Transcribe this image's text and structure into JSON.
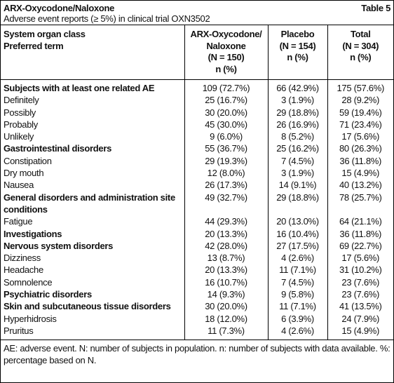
{
  "header": {
    "title": "ARX-Oxycodone/Naloxone",
    "table_label": "Table 5",
    "subtitle": "Adverse event reports (≥ 5%) in clinical trial OXN3502"
  },
  "table": {
    "columns": [
      [
        "System organ class",
        "Preferred term"
      ],
      [
        "ARX-Oxycodone/",
        "Naloxone",
        "(N = 150)",
        "n (%)"
      ],
      [
        "Placebo",
        "(N = 154)",
        "n (%)"
      ],
      [
        "Total",
        "(N = 304)",
        "n (%)"
      ]
    ],
    "rows": [
      {
        "cells": [
          "Subjects with at least one related AE",
          "109 (72.7%)",
          "66 (42.9%)",
          "175 (57.6%)"
        ],
        "bold": true
      },
      {
        "cells": [
          "Definitely",
          "25 (16.7%)",
          "3 (1.9%)",
          "28 (9.2%)"
        ],
        "bold": false
      },
      {
        "cells": [
          "Possibly",
          "30 (20.0%)",
          "29 (18.8%)",
          "59 (19.4%)"
        ],
        "bold": false
      },
      {
        "cells": [
          "Probably",
          "45 (30.0%)",
          "26 (16.9%)",
          "71 (23.4%)"
        ],
        "bold": false
      },
      {
        "cells": [
          "Unlikely",
          "9 (6.0%)",
          "8 (5.2%)",
          "17 (5.6%)"
        ],
        "bold": false
      },
      {
        "cells": [
          "Gastrointestinal disorders",
          "55 (36.7%)",
          "25 (16.2%)",
          "80 (26.3%)"
        ],
        "bold": true
      },
      {
        "cells": [
          "Constipation",
          "29 (19.3%)",
          "7 (4.5%)",
          "36 (11.8%)"
        ],
        "bold": false
      },
      {
        "cells": [
          "Dry mouth",
          "12 (8.0%)",
          "3 (1.9%)",
          "15 (4.9%)"
        ],
        "bold": false
      },
      {
        "cells": [
          "Nausea",
          "26 (17.3%)",
          "14 (9.1%)",
          "40 (13.2%)"
        ],
        "bold": false
      },
      {
        "cells": [
          "General disorders and administration site conditions",
          "49 (32.7%)",
          "29 (18.8%)",
          "78 (25.7%)"
        ],
        "bold": true
      },
      {
        "cells": [
          "Fatigue",
          "44 (29.3%)",
          "20 (13.0%)",
          "64 (21.1%)"
        ],
        "bold": false
      },
      {
        "cells": [
          "Investigations",
          "20 (13.3%)",
          "16 (10.4%)",
          "36 (11.8%)"
        ],
        "bold": true
      },
      {
        "cells": [
          "Nervous system disorders",
          "42 (28.0%)",
          "27 (17.5%)",
          "69 (22.7%)"
        ],
        "bold": true
      },
      {
        "cells": [
          "Dizziness",
          "13 (8.7%)",
          "4 (2.6%)",
          "17 (5.6%)"
        ],
        "bold": false
      },
      {
        "cells": [
          "Headache",
          "20 (13.3%)",
          "11 (7.1%)",
          "31 (10.2%)"
        ],
        "bold": false
      },
      {
        "cells": [
          "Somnolence",
          "16 (10.7%)",
          "7 (4.5%)",
          "23 (7.6%)"
        ],
        "bold": false
      },
      {
        "cells": [
          "Psychiatric disorders",
          "14 (9.3%)",
          "9 (5.8%)",
          "23 (7.6%)"
        ],
        "bold": true
      },
      {
        "cells": [
          "Skin and subcutaneous tissue disorders",
          "30 (20.0%)",
          "11 (7.1%)",
          "41 (13.5%)"
        ],
        "bold": true
      },
      {
        "cells": [
          "Hyperhidrosis",
          "18 (12.0%)",
          "6 (3.9%)",
          "24 (7.9%)"
        ],
        "bold": false
      },
      {
        "cells": [
          "Pruritus",
          "11 (7.3%)",
          "4 (2.6%)",
          "15 (4.9%)"
        ],
        "bold": false
      }
    ]
  },
  "footnote": "AE: adverse event. N: number of subjects in population. n: number of subjects with data available. %: percentage based on N."
}
